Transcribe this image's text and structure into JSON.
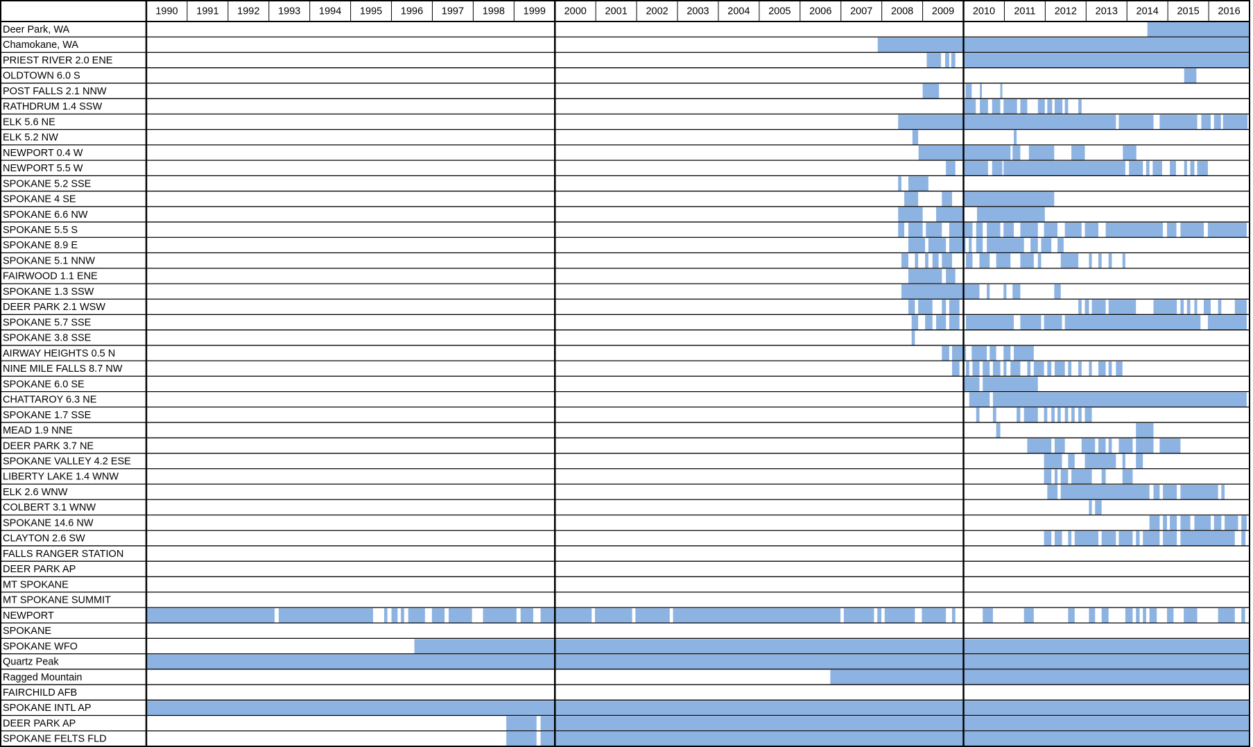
{
  "chart_data": {
    "type": "timeline",
    "color": "#8db3e2",
    "xlim": [
      1990,
      2017
    ],
    "years": [
      1990,
      1991,
      1992,
      1993,
      1994,
      1995,
      1996,
      1997,
      1998,
      1999,
      2000,
      2001,
      2002,
      2003,
      2004,
      2005,
      2006,
      2007,
      2008,
      2009,
      2010,
      2011,
      2012,
      2013,
      2014,
      2015,
      2016
    ],
    "categories": [
      "Deer Park, WA",
      "Chamokane, WA",
      "PRIEST RIVER 2.0 ENE",
      "OLDTOWN 6.0 S",
      "POST FALLS 2.1 NNW",
      "RATHDRUM 1.4 SSW",
      "ELK 5.6 NE",
      "ELK 5.2 NW",
      "NEWPORT 0.4 W",
      "NEWPORT 5.5 W",
      "SPOKANE 5.2 SSE",
      "SPOKANE 4 SE",
      "SPOKANE 6.6 NW",
      "SPOKANE 5.5 S",
      "SPOKANE 8.9 E",
      "SPOKANE 5.1 NNW",
      "FAIRWOOD 1.1 ENE",
      "SPOKANE 1.3 SSW",
      "DEER PARK 2.1 WSW",
      "SPOKANE 5.7 SSE",
      "SPOKANE 3.8 SSE",
      "AIRWAY HEIGHTS 0.5 N",
      "NINE MILE FALLS 8.7 NW",
      "SPOKANE 6.0 SE",
      "CHATTAROY 6.3 NE",
      "SPOKANE 1.7 SSE",
      "MEAD 1.9 NNE",
      "DEER PARK 3.7 NE",
      "SPOKANE VALLEY 4.2 ESE",
      "LIBERTY LAKE 1.4 WNW",
      "ELK 2.6 WNW",
      "COLBERT 3.1 WNW",
      "SPOKANE 14.6 NW",
      "CLAYTON 2.6 SW",
      "FALLS RANGER STATION",
      "DEER PARK AP",
      "MT SPOKANE",
      "MT SPOKANE SUMMIT",
      "NEWPORT",
      "SPOKANE",
      "SPOKANE WFO",
      "Quartz Peak",
      "Ragged Mountain",
      "FAIRCHILD AFB",
      "SPOKANE INTL AP",
      "DEER PARK AP",
      "SPOKANE FELTS FLD"
    ],
    "intervals": [
      [
        [
          2014.5,
          2017
        ]
      ],
      [
        [
          2007.9,
          2017
        ]
      ],
      [
        [
          2009.1,
          2009.45
        ],
        [
          2009.55,
          2009.65
        ],
        [
          2009.7,
          2009.8
        ],
        [
          2010,
          2017
        ]
      ],
      [
        [
          2015.4,
          2015.7
        ]
      ],
      [
        [
          2009.0,
          2009.4
        ],
        [
          2010.05,
          2010.2
        ],
        [
          2010.4,
          2010.45
        ],
        [
          2010.9,
          2010.95
        ]
      ],
      [
        [
          2010.0,
          2010.3
        ],
        [
          2010.4,
          2010.6
        ],
        [
          2010.7,
          2010.9
        ],
        [
          2010.98,
          2011.31
        ],
        [
          2011.39,
          2011.56
        ],
        [
          2011.82,
          2011.99
        ],
        [
          2012.05,
          2012.17
        ],
        [
          2012.23,
          2012.42
        ],
        [
          2012.48,
          2012.56
        ],
        [
          2012.81,
          2012.89
        ]
      ],
      [
        [
          2008.4,
          2013.73
        ],
        [
          2013.8,
          2014.65
        ],
        [
          2014.8,
          2015.72
        ],
        [
          2015.82,
          2016.05
        ],
        [
          2016.13,
          2016.3
        ],
        [
          2016.35,
          2016.95
        ]
      ],
      [
        [
          2008.75,
          2008.89
        ],
        [
          2011.23,
          2011.3
        ]
      ],
      [
        [
          2008.9,
          2011.15
        ],
        [
          2011.2,
          2011.39
        ],
        [
          2011.6,
          2012.22
        ],
        [
          2012.64,
          2012.97
        ],
        [
          2013.9,
          2014.23
        ]
      ],
      [
        [
          2009.57,
          2009.8
        ],
        [
          2010,
          2010.6
        ],
        [
          2010.7,
          2010.95
        ],
        [
          2010.98,
          2013.96
        ],
        [
          2014.05,
          2014.39
        ],
        [
          2014.47,
          2014.55
        ],
        [
          2014.63,
          2014.86
        ],
        [
          2015.05,
          2015.2
        ],
        [
          2015.4,
          2015.47
        ],
        [
          2015.55,
          2015.65
        ],
        [
          2015.72,
          2015.98
        ]
      ],
      [
        [
          2008.4,
          2008.48
        ],
        [
          2008.65,
          2009.14
        ]
      ],
      [
        [
          2008.55,
          2008.89
        ],
        [
          2009.47,
          2009.72
        ],
        [
          2010,
          2012.22
        ]
      ],
      [
        [
          2008.4,
          2009.0
        ],
        [
          2009.33,
          2010
        ],
        [
          2010.33,
          2011.99
        ]
      ],
      [
        [
          2008.4,
          2008.55
        ],
        [
          2008.65,
          2009.0
        ],
        [
          2009.08,
          2009.47
        ],
        [
          2009.65,
          2010.22
        ],
        [
          2010.31,
          2010.47
        ],
        [
          2010.57,
          2010.9
        ],
        [
          2010.98,
          2011.23
        ],
        [
          2011.39,
          2011.82
        ],
        [
          2011.97,
          2012.3
        ],
        [
          2012.48,
          2012.89
        ],
        [
          2012.97,
          2013.3
        ],
        [
          2013.48,
          2014.88
        ],
        [
          2014.98,
          2015.21
        ],
        [
          2015.31,
          2015.88
        ],
        [
          2015.98,
          2016.93
        ]
      ],
      [
        [
          2008.65,
          2009.06
        ],
        [
          2009.14,
          2009.57
        ],
        [
          2009.65,
          2010.05
        ],
        [
          2010.13,
          2010.2
        ],
        [
          2010.31,
          2010.47
        ],
        [
          2010.57,
          2011.48
        ],
        [
          2011.64,
          2011.82
        ],
        [
          2011.9,
          2012.15
        ],
        [
          2012.3,
          2012.45
        ]
      ],
      [
        [
          2008.48,
          2008.65
        ],
        [
          2008.81,
          2008.89
        ],
        [
          2009.06,
          2009.14
        ],
        [
          2009.24,
          2009.39
        ],
        [
          2009.47,
          2009.72
        ],
        [
          2010.06,
          2010.22
        ],
        [
          2010.39,
          2010.64
        ],
        [
          2010.8,
          2011.15
        ],
        [
          2011.39,
          2011.72
        ],
        [
          2011.82,
          2011.9
        ],
        [
          2012.38,
          2012.81
        ],
        [
          2013.07,
          2013.14
        ],
        [
          2013.3,
          2013.38
        ],
        [
          2013.55,
          2013.63
        ],
        [
          2013.89,
          2013.96
        ]
      ],
      [
        [
          2008.65,
          2009.47
        ],
        [
          2009.57,
          2009.8
        ]
      ],
      [
        [
          2008.48,
          2010.39
        ],
        [
          2010.57,
          2010.64
        ],
        [
          2010.98,
          2011.05
        ],
        [
          2011.2,
          2011.39
        ],
        [
          2012.22,
          2012.38
        ]
      ],
      [
        [
          2008.65,
          2008.81
        ],
        [
          2008.89,
          2009.24
        ],
        [
          2009.47,
          2009.57
        ],
        [
          2009.65,
          2009.9
        ],
        [
          2012.81,
          2012.89
        ],
        [
          2012.97,
          2013.07
        ],
        [
          2013.14,
          2013.48
        ],
        [
          2013.55,
          2014.22
        ],
        [
          2014.65,
          2015.22
        ],
        [
          2015.31,
          2015.39
        ],
        [
          2015.47,
          2015.55
        ],
        [
          2015.65,
          2015.72
        ],
        [
          2015.88,
          2016.05
        ],
        [
          2016.23,
          2016.31
        ],
        [
          2016.64,
          2016.93
        ]
      ],
      [
        [
          2008.73,
          2008.89
        ],
        [
          2009.06,
          2009.24
        ],
        [
          2009.33,
          2009.57
        ],
        [
          2009.65,
          2009.9
        ],
        [
          2010.06,
          2011.23
        ],
        [
          2011.39,
          2011.9
        ],
        [
          2011.97,
          2012.41
        ],
        [
          2012.48,
          2015.8
        ],
        [
          2015.98,
          2016.93
        ]
      ],
      [
        [
          2008.73,
          2008.81
        ]
      ],
      [
        [
          2009.47,
          2009.65
        ],
        [
          2009.72,
          2010.06
        ],
        [
          2010.2,
          2010.57
        ],
        [
          2010.64,
          2010.8
        ],
        [
          2010.98,
          2011.15
        ],
        [
          2011.23,
          2011.72
        ]
      ],
      [
        [
          2009.72,
          2009.9
        ],
        [
          2010.06,
          2010.14
        ],
        [
          2010.22,
          2010.39
        ],
        [
          2010.47,
          2010.64
        ],
        [
          2010.72,
          2010.9
        ],
        [
          2010.98,
          2011.05
        ],
        [
          2011.15,
          2011.39
        ],
        [
          2011.56,
          2011.64
        ],
        [
          2011.72,
          2011.97
        ],
        [
          2012.05,
          2012.15
        ],
        [
          2012.23,
          2012.48
        ],
        [
          2012.56,
          2012.64
        ],
        [
          2012.81,
          2012.89
        ],
        [
          2013.07,
          2013.14
        ],
        [
          2013.3,
          2013.48
        ],
        [
          2013.55,
          2013.63
        ],
        [
          2013.73,
          2013.89
        ]
      ],
      [
        [
          2010,
          2010.39
        ],
        [
          2010.47,
          2011.82
        ]
      ],
      [
        [
          2010.14,
          2010.64
        ],
        [
          2010.72,
          2016.93
        ]
      ],
      [
        [
          2010.31,
          2010.39
        ],
        [
          2010.72,
          2010.8
        ],
        [
          2011.3,
          2011.39
        ],
        [
          2011.48,
          2011.82
        ],
        [
          2011.97,
          2012.05
        ],
        [
          2012.15,
          2012.23
        ],
        [
          2012.3,
          2012.38
        ],
        [
          2012.48,
          2012.56
        ],
        [
          2012.64,
          2012.72
        ],
        [
          2012.81,
          2012.89
        ],
        [
          2012.97,
          2013.14
        ]
      ],
      [
        [
          2010.8,
          2010.9
        ],
        [
          2014.22,
          2014.65
        ]
      ],
      [
        [
          2011.56,
          2012.15
        ],
        [
          2012.23,
          2012.48
        ],
        [
          2012.89,
          2013.22
        ],
        [
          2013.3,
          2013.48
        ],
        [
          2013.55,
          2013.63
        ],
        [
          2013.8,
          2014.14
        ],
        [
          2014.22,
          2014.65
        ],
        [
          2014.8,
          2015.31
        ]
      ],
      [
        [
          2011.97,
          2012.41
        ],
        [
          2012.56,
          2012.72
        ],
        [
          2012.97,
          2013.73
        ],
        [
          2013.89,
          2013.96
        ],
        [
          2014.22,
          2014.39
        ]
      ],
      [
        [
          2011.97,
          2012.15
        ],
        [
          2012.23,
          2012.3
        ],
        [
          2012.38,
          2012.56
        ],
        [
          2012.64,
          2013.14
        ],
        [
          2013.38,
          2013.48
        ],
        [
          2013.89,
          2014.14
        ]
      ],
      [
        [
          2012.05,
          2012.3
        ],
        [
          2012.38,
          2014.55
        ],
        [
          2014.65,
          2014.8
        ],
        [
          2014.88,
          2015.22
        ],
        [
          2015.31,
          2016.23
        ],
        [
          2016.31,
          2016.39
        ]
      ],
      [
        [
          2013.07,
          2013.14
        ],
        [
          2013.22,
          2013.38
        ]
      ],
      [
        [
          2014.55,
          2014.8
        ],
        [
          2014.88,
          2014.98
        ],
        [
          2015.05,
          2015.22
        ],
        [
          2015.31,
          2015.55
        ],
        [
          2015.65,
          2016.05
        ],
        [
          2016.13,
          2016.31
        ],
        [
          2016.39,
          2016.72
        ],
        [
          2016.8,
          2016.93
        ]
      ],
      [
        [
          2011.97,
          2012.15
        ],
        [
          2012.23,
          2012.41
        ],
        [
          2012.56,
          2012.64
        ],
        [
          2012.72,
          2013.3
        ],
        [
          2013.38,
          2013.73
        ],
        [
          2013.8,
          2014.14
        ],
        [
          2014.22,
          2014.31
        ],
        [
          2014.39,
          2014.8
        ],
        [
          2014.88,
          2015.22
        ],
        [
          2015.31,
          2016.64
        ],
        [
          2016.8,
          2016.9
        ]
      ],
      [],
      [],
      [],
      [],
      [
        [
          1990,
          1993.14
        ],
        [
          1993.24,
          1995.55
        ],
        [
          1995.82,
          1995.9
        ],
        [
          1996.0,
          1996.15
        ],
        [
          1996.23,
          1996.31
        ],
        [
          1996.41,
          1996.82
        ],
        [
          1996.99,
          1997.3
        ],
        [
          1997.4,
          1997.97
        ],
        [
          1998.24,
          1999.06
        ],
        [
          1999.16,
          1999.47
        ],
        [
          1999.65,
          2000.9
        ],
        [
          2000.98,
          2001.89
        ],
        [
          2001.97,
          2002.81
        ],
        [
          2002.89,
          2006.99
        ],
        [
          2007.07,
          2007.81
        ],
        [
          2007.89,
          2007.99
        ],
        [
          2008.07,
          2008.81
        ],
        [
          2008.98,
          2009.57
        ],
        [
          2009.72,
          2009.8
        ],
        [
          2010.47,
          2010.72
        ],
        [
          2011.48,
          2011.72
        ],
        [
          2012.56,
          2012.72
        ],
        [
          2013.07,
          2013.22
        ],
        [
          2013.38,
          2013.55
        ],
        [
          2013.96,
          2014.14
        ],
        [
          2014.22,
          2014.31
        ],
        [
          2014.39,
          2014.47
        ],
        [
          2014.55,
          2014.73
        ],
        [
          2014.98,
          2015.14
        ],
        [
          2015.39,
          2015.72
        ],
        [
          2016.23,
          2016.64
        ],
        [
          2016.8,
          2016.89
        ]
      ],
      [],
      [
        [
          1996.56,
          2017
        ]
      ],
      [
        [
          1990,
          2017
        ]
      ],
      [
        [
          2006.74,
          2017
        ]
      ],
      [],
      [
        [
          1990,
          2017
        ]
      ],
      [
        [
          1998.81,
          1999.55
        ],
        [
          1999.65,
          2017
        ]
      ],
      [
        [
          1998.81,
          1999.55
        ],
        [
          1999.65,
          2017
        ]
      ]
    ]
  }
}
